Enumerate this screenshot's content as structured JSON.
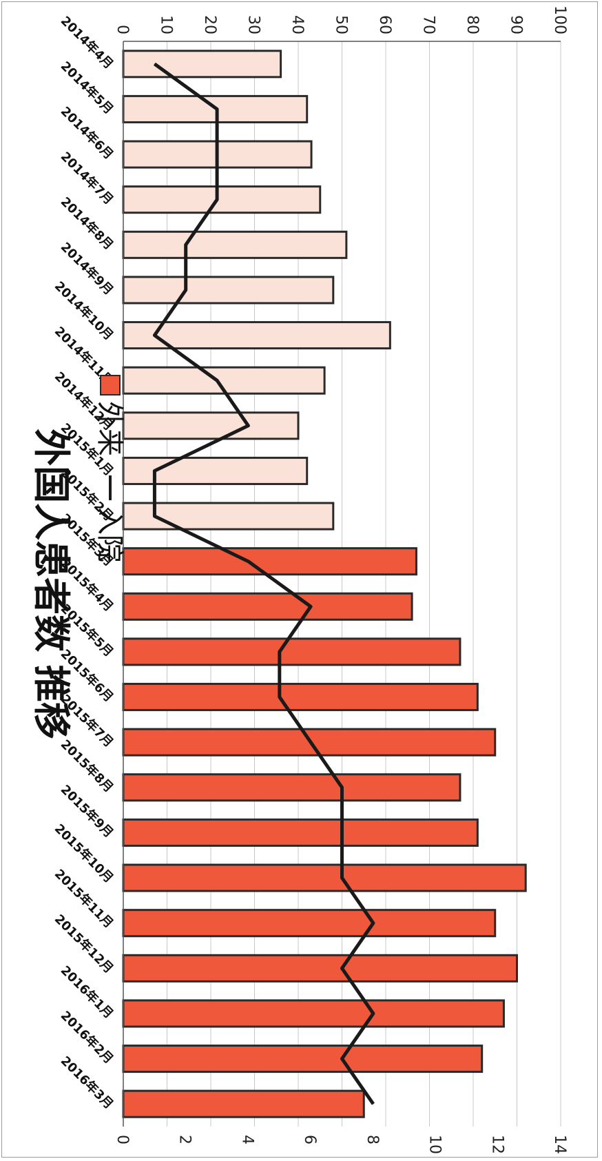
{
  "chart_data": {
    "type": "bar",
    "title": "外国人患者数  推移",
    "categories": [
      "2014年4月",
      "2014年5月",
      "2014年6月",
      "2014年7月",
      "2014年8月",
      "2014年9月",
      "2014年10月",
      "2014年11月",
      "2014年12月",
      "2015年1月",
      "2015年2月",
      "2015年3月",
      "2015年4月",
      "2015年5月",
      "2015年6月",
      "2015年7月",
      "2015年8月",
      "2015年9月",
      "2015年10月",
      "2015年11月",
      "2015年12月",
      "2016年1月",
      "2016年2月",
      "2016年3月"
    ],
    "series": [
      {
        "name": "外来",
        "axis": "left",
        "type": "bar",
        "values": [
          36,
          42,
          43,
          45,
          51,
          48,
          61,
          46,
          40,
          42,
          48,
          67,
          66,
          77,
          81,
          85,
          77,
          81,
          92,
          85,
          90,
          87,
          82,
          55
        ],
        "colors": [
          "#fbe2d8",
          "#fbe2d8",
          "#fbe2d8",
          "#fbe2d8",
          "#fbe2d8",
          "#fbe2d8",
          "#fbe2d8",
          "#fbe2d8",
          "#fbe2d8",
          "#fbe2d8",
          "#fbe2d8",
          "#f0583c",
          "#f0583c",
          "#f0583c",
          "#f0583c",
          "#f0583c",
          "#f0583c",
          "#f0583c",
          "#f0583c",
          "#f0583c",
          "#f0583c",
          "#f0583c",
          "#f0583c",
          "#f0583c"
        ]
      },
      {
        "name": "入院",
        "axis": "right",
        "type": "line",
        "values": [
          1,
          3,
          3,
          3,
          2,
          2,
          1,
          3,
          4,
          1,
          1,
          4,
          6,
          5,
          5,
          6,
          7,
          7,
          7,
          8,
          7,
          8,
          7,
          8
        ]
      }
    ],
    "ylim_left": [
      0,
      100
    ],
    "yticks_left": [
      "0",
      "10",
      "20",
      "30",
      "40",
      "50",
      "60",
      "70",
      "80",
      "90",
      "100"
    ],
    "ylim_right": [
      0,
      14
    ],
    "yticks_right": [
      "0",
      "2",
      "4",
      "6",
      "8",
      "10",
      "12",
      "14"
    ],
    "grid": true,
    "legend": "top-left",
    "line_color": "#1a1a1a",
    "bar_stroke": "#2a2a2a"
  },
  "legend": {
    "bar_label": "外来",
    "line_label": "入院"
  }
}
